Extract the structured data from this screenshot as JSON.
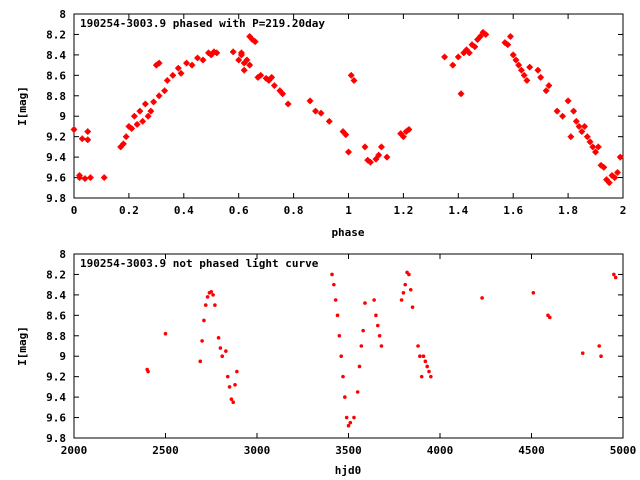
{
  "chart_data": [
    {
      "type": "scatter",
      "title": "190254-3003.9 phased with P=219.20day",
      "xlabel": "phase",
      "ylabel": "I[mag]",
      "xlim": [
        0,
        2
      ],
      "ylim": [
        8,
        9.8
      ],
      "y_inverted": true,
      "xticks": [
        "0",
        "0.2",
        "0.4",
        "0.6",
        "0.8",
        "1",
        "1.2",
        "1.4",
        "1.6",
        "1.8",
        "2"
      ],
      "yticks": [
        "8",
        "8.2",
        "8.4",
        "8.6",
        "8.8",
        "9",
        "9.2",
        "9.4",
        "9.6",
        "9.8"
      ],
      "grid": false,
      "marker_color": "#ff0000",
      "series": [
        {
          "x": [
            0.0,
            0.02,
            0.02,
            0.03,
            0.04,
            0.05,
            0.05,
            0.06,
            0.11,
            0.17,
            0.18,
            0.19,
            0.2,
            0.21,
            0.22,
            0.23,
            0.24,
            0.25,
            0.26,
            0.27,
            0.28,
            0.29,
            0.3,
            0.31,
            0.31,
            0.33,
            0.34,
            0.36,
            0.38,
            0.39,
            0.41,
            0.43,
            0.45,
            0.47,
            0.49,
            0.5,
            0.51,
            0.52,
            0.58,
            0.6,
            0.61,
            0.61,
            0.62,
            0.62,
            0.63,
            0.64,
            0.64,
            0.65,
            0.66,
            0.67,
            0.68,
            0.7,
            0.71,
            0.72,
            0.73,
            0.75,
            0.76,
            0.78,
            0.86,
            0.88,
            0.9,
            0.93,
            0.98,
            0.99,
            1.0,
            1.01,
            1.02,
            1.06,
            1.07,
            1.08,
            1.1,
            1.11,
            1.12,
            1.14,
            1.19,
            1.2,
            1.21,
            1.22,
            1.35,
            1.38,
            1.4,
            1.41,
            1.42,
            1.43,
            1.44,
            1.45,
            1.46,
            1.47,
            1.48,
            1.49,
            1.5,
            1.57,
            1.58,
            1.59,
            1.6,
            1.61,
            1.62,
            1.63,
            1.64,
            1.65,
            1.66,
            1.69,
            1.7,
            1.72,
            1.73,
            1.76,
            1.78,
            1.8,
            1.81,
            1.82,
            1.83,
            1.84,
            1.85,
            1.86,
            1.87,
            1.88,
            1.89,
            1.9,
            1.91,
            1.92,
            1.93,
            1.94,
            1.95,
            1.96,
            1.97,
            1.98,
            1.99
          ],
          "y": [
            9.13,
            9.58,
            9.6,
            9.22,
            9.61,
            9.15,
            9.23,
            9.6,
            9.6,
            9.3,
            9.27,
            9.2,
            9.1,
            9.12,
            9.0,
            9.08,
            8.95,
            9.05,
            8.88,
            9.0,
            8.95,
            8.86,
            8.5,
            8.8,
            8.48,
            8.75,
            8.65,
            8.6,
            8.53,
            8.58,
            8.48,
            8.5,
            8.43,
            8.45,
            8.38,
            8.4,
            8.37,
            8.38,
            8.37,
            8.45,
            8.4,
            8.38,
            8.48,
            8.55,
            8.45,
            8.5,
            8.22,
            8.25,
            8.27,
            8.62,
            8.6,
            8.63,
            8.65,
            8.62,
            8.7,
            8.75,
            8.78,
            8.88,
            8.85,
            8.95,
            8.97,
            9.05,
            9.15,
            9.18,
            9.35,
            8.6,
            8.65,
            9.3,
            9.43,
            9.45,
            9.42,
            9.38,
            9.3,
            9.4,
            9.17,
            9.2,
            9.15,
            9.13,
            8.42,
            8.5,
            8.42,
            8.78,
            8.38,
            8.35,
            8.38,
            8.3,
            8.32,
            8.25,
            8.22,
            8.18,
            8.2,
            8.28,
            8.3,
            8.22,
            8.4,
            8.45,
            8.5,
            8.55,
            8.6,
            8.65,
            8.52,
            8.55,
            8.62,
            8.75,
            8.7,
            8.95,
            9.0,
            8.85,
            9.2,
            8.95,
            9.05,
            9.1,
            9.15,
            9.1,
            9.2,
            9.25,
            9.3,
            9.35,
            9.3,
            9.48,
            9.5,
            9.62,
            9.65,
            9.58,
            9.6,
            9.55,
            9.4
          ]
        }
      ]
    },
    {
      "type": "scatter",
      "title": "190254-3003.9 not phased light curve",
      "xlabel": "hjd0",
      "ylabel": "I[mag]",
      "xlim": [
        2000,
        5000
      ],
      "ylim": [
        8,
        9.8
      ],
      "y_inverted": true,
      "xticks": [
        "2000",
        "2500",
        "3000",
        "3500",
        "4000",
        "4500",
        "5000"
      ],
      "yticks": [
        "8",
        "8.2",
        "8.4",
        "8.6",
        "8.8",
        "9",
        "9.2",
        "9.4",
        "9.6",
        "9.8"
      ],
      "grid": false,
      "marker_color": "#ff0000",
      "series": [
        {
          "x": [
            2400,
            2405,
            2500,
            2690,
            2700,
            2710,
            2720,
            2730,
            2740,
            2750,
            2760,
            2770,
            2790,
            2800,
            2810,
            2830,
            2840,
            2850,
            2860,
            2870,
            2880,
            2890,
            3410,
            3420,
            3430,
            3440,
            3450,
            3460,
            3470,
            3480,
            3490,
            3500,
            3510,
            3530,
            3550,
            3560,
            3570,
            3580,
            3590,
            3640,
            3650,
            3660,
            3670,
            3680,
            3790,
            3800,
            3810,
            3820,
            3830,
            3840,
            3850,
            3880,
            3890,
            3900,
            3910,
            3920,
            3930,
            3940,
            3950,
            4230,
            4510,
            4590,
            4600,
            4780,
            4870,
            4880,
            4950,
            4960
          ],
          "y": [
            9.13,
            9.15,
            8.78,
            9.05,
            8.85,
            8.65,
            8.5,
            8.42,
            8.38,
            8.37,
            8.4,
            8.5,
            8.82,
            8.92,
            9.0,
            8.95,
            9.2,
            9.3,
            9.42,
            9.45,
            9.28,
            9.15,
            8.2,
            8.3,
            8.45,
            8.6,
            8.8,
            9.0,
            9.2,
            9.4,
            9.6,
            9.68,
            9.65,
            9.6,
            9.35,
            9.1,
            8.9,
            8.75,
            8.48,
            8.45,
            8.6,
            8.7,
            8.8,
            8.9,
            8.45,
            8.38,
            8.3,
            8.18,
            8.2,
            8.35,
            8.52,
            8.9,
            9.0,
            9.2,
            9.0,
            9.05,
            9.1,
            9.15,
            9.2,
            8.43,
            8.38,
            8.6,
            8.62,
            8.97,
            8.9,
            9.0,
            8.2,
            8.23
          ]
        }
      ]
    }
  ]
}
